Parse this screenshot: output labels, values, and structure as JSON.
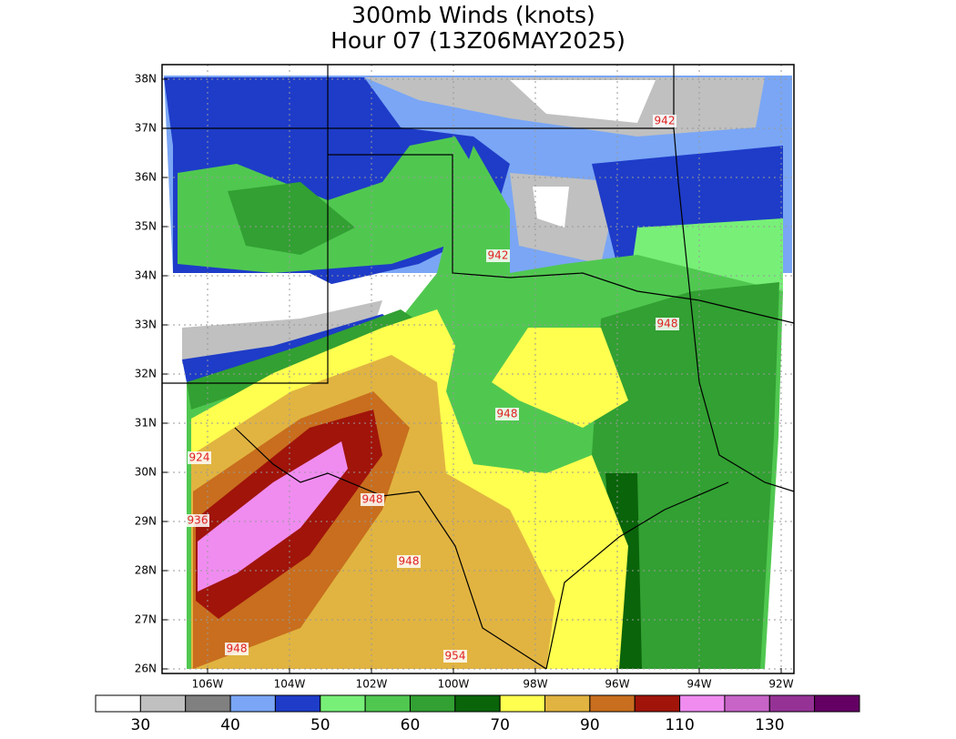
{
  "title": [
    "300mb Winds (knots)",
    "Hour 07 (13Z06MAY2025)"
  ],
  "map": {
    "lat_labels": [
      "38N",
      "37N",
      "36N",
      "35N",
      "34N",
      "33N",
      "32N",
      "31N",
      "30N",
      "29N",
      "28N",
      "27N",
      "26N"
    ],
    "lon_labels": [
      "106W",
      "104W",
      "102W",
      "100W",
      "98W",
      "96W",
      "94W",
      "92W"
    ],
    "contour_labels": [
      "942",
      "942",
      "948",
      "948",
      "924",
      "948",
      "936",
      "948",
      "948",
      "954"
    ]
  },
  "colorbar": {
    "colors": [
      "#ffffff",
      "#c0c0c0",
      "#808080",
      "#7aa6f5",
      "#1e3cc8",
      "#78f078",
      "#50c850",
      "#32a032",
      "#0a640a",
      "#ffff50",
      "#e1b441",
      "#c86e1e",
      "#a0140a",
      "#f08cf0",
      "#c864c8",
      "#963296",
      "#640064"
    ],
    "labels": [
      30,
      40,
      50,
      60,
      70,
      90,
      110,
      130
    ]
  }
}
